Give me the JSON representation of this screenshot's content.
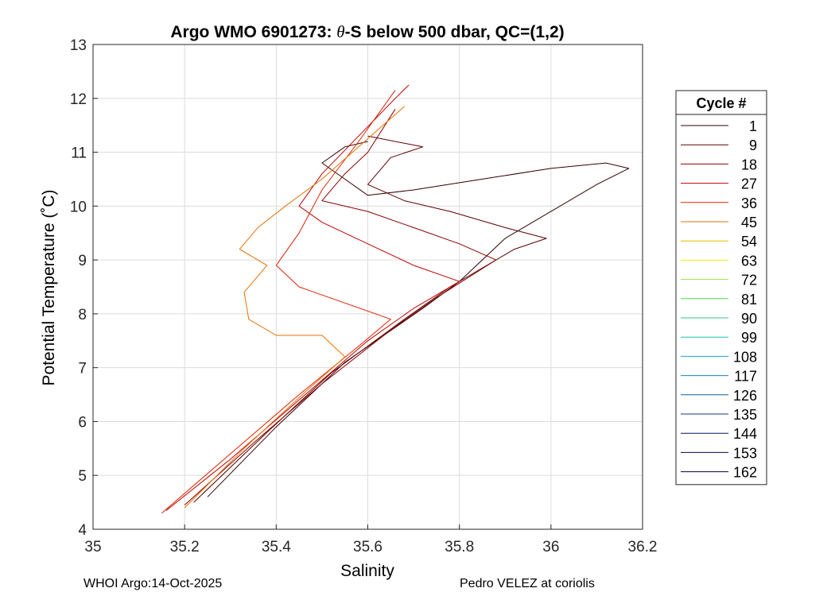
{
  "chart_data": {
    "type": "line",
    "title": "Argo WMO 6901273: θ-S below 500 dbar,  QC=(1,2)",
    "title_parts": [
      "Argo WMO 6901273: ",
      "θ",
      "-S below 500 dbar,  QC=(1,2)"
    ],
    "xlabel": "Salinity",
    "ylabel": "Potential Temperature (˚C)",
    "xlim": [
      35,
      36.2
    ],
    "ylim": [
      4,
      13
    ],
    "xticks": [
      35,
      35.2,
      35.4,
      35.6,
      35.8,
      36,
      36.2
    ],
    "xtick_labels": [
      "35",
      "35.2",
      "35.4",
      "35.6",
      "35.8",
      "36",
      "36.2"
    ],
    "yticks": [
      4,
      5,
      6,
      7,
      8,
      9,
      10,
      11,
      12,
      13
    ],
    "ytick_labels": [
      "4",
      "5",
      "6",
      "7",
      "8",
      "9",
      "10",
      "11",
      "12",
      "13"
    ],
    "grid": true,
    "legend": {
      "title": "Cycle #",
      "placement": "right",
      "entries": [
        {
          "label": "1",
          "color": "#330000"
        },
        {
          "label": "9",
          "color": "#5a0000"
        },
        {
          "label": "18",
          "color": "#8b0000"
        },
        {
          "label": "27",
          "color": "#c00000"
        },
        {
          "label": "36",
          "color": "#e02000"
        },
        {
          "label": "45",
          "color": "#e87000"
        },
        {
          "label": "54",
          "color": "#e8b800"
        },
        {
          "label": "63",
          "color": "#f0f000"
        },
        {
          "label": "72",
          "color": "#a0e040"
        },
        {
          "label": "81",
          "color": "#40e040"
        },
        {
          "label": "90",
          "color": "#20d080"
        },
        {
          "label": "99",
          "color": "#20c0b0"
        },
        {
          "label": "108",
          "color": "#10a8c8"
        },
        {
          "label": "117",
          "color": "#1088b0"
        },
        {
          "label": "126",
          "color": "#106098"
        },
        {
          "label": "135",
          "color": "#103878"
        },
        {
          "label": "144",
          "color": "#081858"
        },
        {
          "label": "153",
          "color": "#080840"
        },
        {
          "label": "162",
          "color": "#000030"
        }
      ]
    },
    "series": [
      {
        "name": "1",
        "color": "#330000",
        "points": [
          [
            35.25,
            4.6
          ],
          [
            35.4,
            5.9
          ],
          [
            35.55,
            7.1
          ],
          [
            35.72,
            8.1
          ],
          [
            35.8,
            8.6
          ],
          [
            35.9,
            9.4
          ],
          [
            36.0,
            9.9
          ],
          [
            36.1,
            10.4
          ],
          [
            36.17,
            10.7
          ],
          [
            36.12,
            10.8
          ],
          [
            36.0,
            10.7
          ],
          [
            35.85,
            10.5
          ],
          [
            35.7,
            10.3
          ],
          [
            35.6,
            10.2
          ],
          [
            35.55,
            10.5
          ],
          [
            35.5,
            10.8
          ],
          [
            35.55,
            11.1
          ],
          [
            35.6,
            11.2
          ]
        ]
      },
      {
        "name": "9",
        "color": "#5a0000",
        "points": [
          [
            35.22,
            4.5
          ],
          [
            35.38,
            5.8
          ],
          [
            35.52,
            6.9
          ],
          [
            35.68,
            7.9
          ],
          [
            35.78,
            8.5
          ],
          [
            35.92,
            9.2
          ],
          [
            35.99,
            9.4
          ],
          [
            35.9,
            9.6
          ],
          [
            35.78,
            9.9
          ],
          [
            35.68,
            10.1
          ],
          [
            35.6,
            10.4
          ],
          [
            35.65,
            10.9
          ],
          [
            35.72,
            11.1
          ],
          [
            35.6,
            11.3
          ]
        ]
      },
      {
        "name": "18",
        "color": "#8b0000",
        "points": [
          [
            35.2,
            4.45
          ],
          [
            35.35,
            5.6
          ],
          [
            35.5,
            6.7
          ],
          [
            35.65,
            7.7
          ],
          [
            35.75,
            8.3
          ],
          [
            35.88,
            9.0
          ],
          [
            35.8,
            9.3
          ],
          [
            35.7,
            9.6
          ],
          [
            35.6,
            9.9
          ],
          [
            35.5,
            10.1
          ],
          [
            35.55,
            10.6
          ],
          [
            35.6,
            11.0
          ],
          [
            35.66,
            11.8
          ]
        ]
      },
      {
        "name": "27",
        "color": "#c00000",
        "points": [
          [
            35.16,
            4.35
          ],
          [
            35.3,
            5.3
          ],
          [
            35.45,
            6.4
          ],
          [
            35.6,
            7.5
          ],
          [
            35.7,
            8.1
          ],
          [
            35.8,
            8.6
          ],
          [
            35.7,
            8.9
          ],
          [
            35.6,
            9.3
          ],
          [
            35.5,
            9.7
          ],
          [
            35.45,
            10.0
          ],
          [
            35.5,
            10.6
          ],
          [
            35.58,
            11.3
          ],
          [
            35.66,
            12.0
          ],
          [
            35.69,
            12.25
          ]
        ]
      },
      {
        "name": "36",
        "color": "#e02000",
        "points": [
          [
            35.15,
            4.3
          ],
          [
            35.3,
            5.4
          ],
          [
            35.45,
            6.5
          ],
          [
            35.58,
            7.4
          ],
          [
            35.65,
            7.9
          ],
          [
            35.55,
            8.2
          ],
          [
            35.45,
            8.5
          ],
          [
            35.4,
            8.9
          ],
          [
            35.45,
            9.5
          ],
          [
            35.5,
            10.3
          ],
          [
            35.58,
            11.2
          ],
          [
            35.66,
            12.15
          ]
        ]
      },
      {
        "name": "45",
        "color": "#e87000",
        "points": [
          [
            35.2,
            4.4
          ],
          [
            35.33,
            5.5
          ],
          [
            35.47,
            6.6
          ],
          [
            35.55,
            7.2
          ],
          [
            35.5,
            7.6
          ],
          [
            35.4,
            7.6
          ],
          [
            35.34,
            7.9
          ],
          [
            35.33,
            8.4
          ],
          [
            35.38,
            8.9
          ],
          [
            35.32,
            9.2
          ],
          [
            35.36,
            9.6
          ],
          [
            35.42,
            10.0
          ],
          [
            35.5,
            10.5
          ],
          [
            35.58,
            11.1
          ],
          [
            35.68,
            11.85
          ]
        ]
      }
    ]
  },
  "footer": {
    "left": "WHOI Argo:14-Oct-2025",
    "right": "Pedro VELEZ at coriolis"
  }
}
